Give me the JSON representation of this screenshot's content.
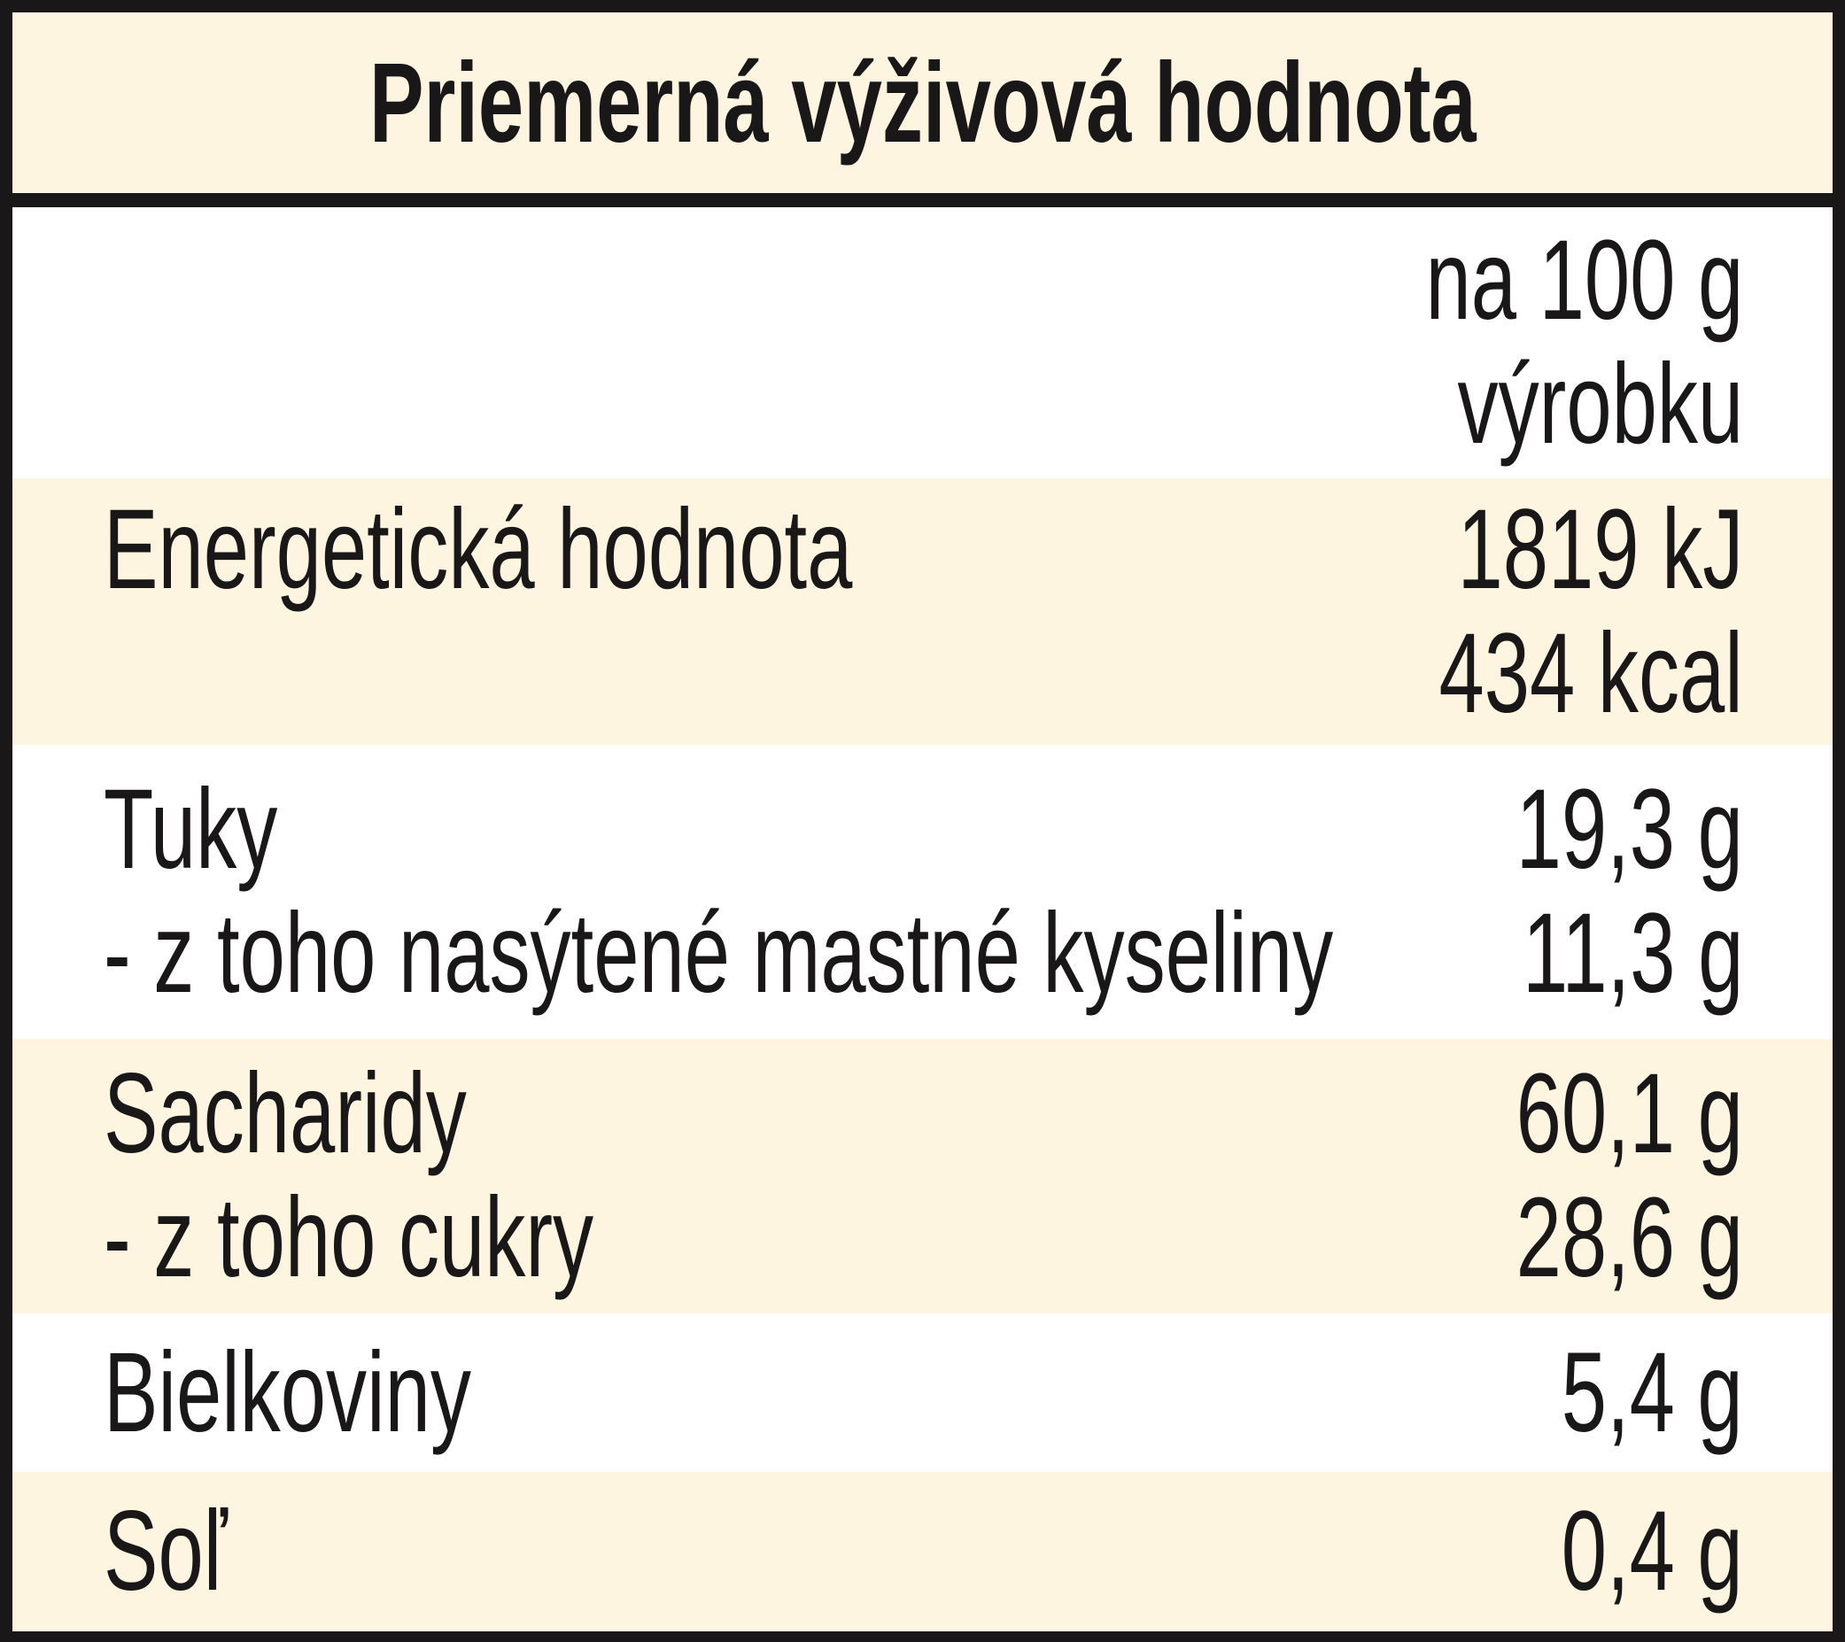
{
  "title": "Priemerná výživová hodnota",
  "header": {
    "value_lines": [
      "na 100 g",
      "výrobku"
    ]
  },
  "rows": [
    {
      "labels": [
        "Energetická hodnota"
      ],
      "values": [
        "1819 kJ",
        "434 kcal"
      ]
    },
    {
      "labels": [
        "Tuky",
        "- z toho nasýtené mastné kyseliny"
      ],
      "values": [
        "19,3 g",
        "11,3 g"
      ]
    },
    {
      "labels": [
        "Sacharidy",
        "- z toho cukry"
      ],
      "values": [
        "60,1 g",
        "28,6 g"
      ]
    },
    {
      "labels": [
        "Bielkoviny"
      ],
      "values": [
        "5,4 g"
      ]
    },
    {
      "labels": [
        "Soľ"
      ],
      "values": [
        "0,4 g"
      ]
    }
  ]
}
